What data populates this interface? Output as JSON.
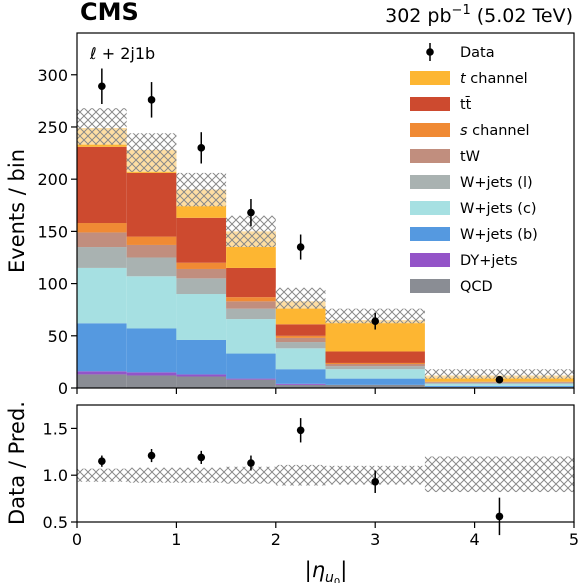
{
  "header": {
    "experiment": "CMS",
    "lumi": "302 pb",
    "lumi_exp": "−1",
    "energy": "(5.02 TeV)",
    "category": "ℓ + 2j1b"
  },
  "legend": [
    {
      "label": "Data",
      "color": "#000000",
      "kind": "marker"
    },
    {
      "label": "t channel",
      "color": "#FDB632",
      "kind": "box"
    },
    {
      "label": "tt̄",
      "color": "#CD4A2F",
      "kind": "box"
    },
    {
      "label": "s channel",
      "color": "#F08A34",
      "kind": "box"
    },
    {
      "label": "tW",
      "color": "#C18E7E",
      "kind": "box"
    },
    {
      "label": "W+jets (l)",
      "color": "#A9B2B1",
      "kind": "box"
    },
    {
      "label": "W+jets (c)",
      "color": "#A6E0E2",
      "kind": "box"
    },
    {
      "label": "W+jets (b)",
      "color": "#5599E0",
      "kind": "box"
    },
    {
      "label": "DY+jets",
      "color": "#9454C8",
      "kind": "box"
    },
    {
      "label": "QCD",
      "color": "#8A8D94",
      "kind": "box"
    }
  ],
  "chart_data": [
    {
      "type": "bar",
      "subtype": "stacked-histogram",
      "xlabel": "",
      "ylabel": "Events / bin",
      "xlim": [
        0,
        5
      ],
      "ylim": [
        0,
        340
      ],
      "x_ticks": [
        "0",
        "1",
        "2",
        "3",
        "4",
        "5"
      ],
      "y_ticks": [
        "0",
        "50",
        "100",
        "150",
        "200",
        "250",
        "300"
      ],
      "bin_edges": [
        0,
        0.5,
        1.0,
        1.5,
        2.0,
        2.5,
        3.5,
        5.0
      ],
      "series": [
        {
          "name": "QCD",
          "color": "#8A8D94",
          "values": [
            13,
            12,
            11,
            8,
            3,
            3,
            1
          ]
        },
        {
          "name": "DY+jets",
          "color": "#9454C8",
          "values": [
            3,
            3,
            2,
            1,
            1,
            0,
            0
          ]
        },
        {
          "name": "W+jets (b)",
          "color": "#5599E0",
          "values": [
            46,
            42,
            33,
            24,
            14,
            6,
            1
          ]
        },
        {
          "name": "W+jets (c)",
          "color": "#A6E0E2",
          "values": [
            53,
            50,
            44,
            33,
            20,
            9,
            2
          ]
        },
        {
          "name": "W+jets (l)",
          "color": "#A9B2B1",
          "values": [
            20,
            18,
            15,
            10,
            6,
            3,
            1
          ]
        },
        {
          "name": "tW",
          "color": "#C18E7E",
          "values": [
            14,
            12,
            9,
            7,
            4,
            2,
            1
          ]
        },
        {
          "name": "s channel",
          "color": "#F08A34",
          "values": [
            9,
            8,
            6,
            4,
            2,
            1,
            0
          ]
        },
        {
          "name": "tt̄",
          "color": "#CD4A2F",
          "values": [
            73,
            61,
            43,
            28,
            11,
            11,
            0
          ]
        },
        {
          "name": "t channel",
          "color": "#FDB632",
          "values": [
            18,
            22,
            27,
            35,
            22,
            30,
            6
          ]
        }
      ],
      "uncertainty_band": {
        "low": [
          233,
          207,
          174,
          135,
          76,
          62,
          9
        ],
        "high": [
          268,
          244,
          206,
          165,
          96,
          76,
          18
        ]
      },
      "data": {
        "x": [
          0.25,
          0.75,
          1.25,
          1.75,
          2.25,
          3.0,
          4.25
        ],
        "y": [
          289,
          276,
          230,
          168,
          135,
          64,
          8
        ],
        "err": [
          17,
          17,
          15,
          13,
          12,
          8,
          3
        ]
      }
    },
    {
      "type": "scatter",
      "subtype": "ratio",
      "xlabel": "|η_{u₀}|",
      "ylabel": "Data / Pred.",
      "xlim": [
        0,
        5
      ],
      "ylim": [
        0.5,
        1.75
      ],
      "x_ticks": [
        "0",
        "1",
        "2",
        "3",
        "4",
        "5"
      ],
      "y_ticks": [
        "0.5",
        "1.0",
        "1.5"
      ],
      "bin_edges": [
        0,
        0.5,
        1.0,
        1.5,
        2.0,
        2.5,
        3.5,
        5.0
      ],
      "uncertainty_band": {
        "low": [
          0.93,
          0.92,
          0.92,
          0.91,
          0.89,
          0.9,
          0.82
        ],
        "high": [
          1.07,
          1.08,
          1.08,
          1.09,
          1.11,
          1.1,
          1.2
        ]
      },
      "data": {
        "x": [
          0.25,
          0.75,
          1.25,
          1.75,
          2.25,
          3.0,
          4.25
        ],
        "y": [
          1.15,
          1.21,
          1.19,
          1.13,
          1.48,
          0.93,
          0.56
        ],
        "err": [
          0.06,
          0.07,
          0.07,
          0.08,
          0.13,
          0.12,
          0.2
        ]
      }
    }
  ]
}
